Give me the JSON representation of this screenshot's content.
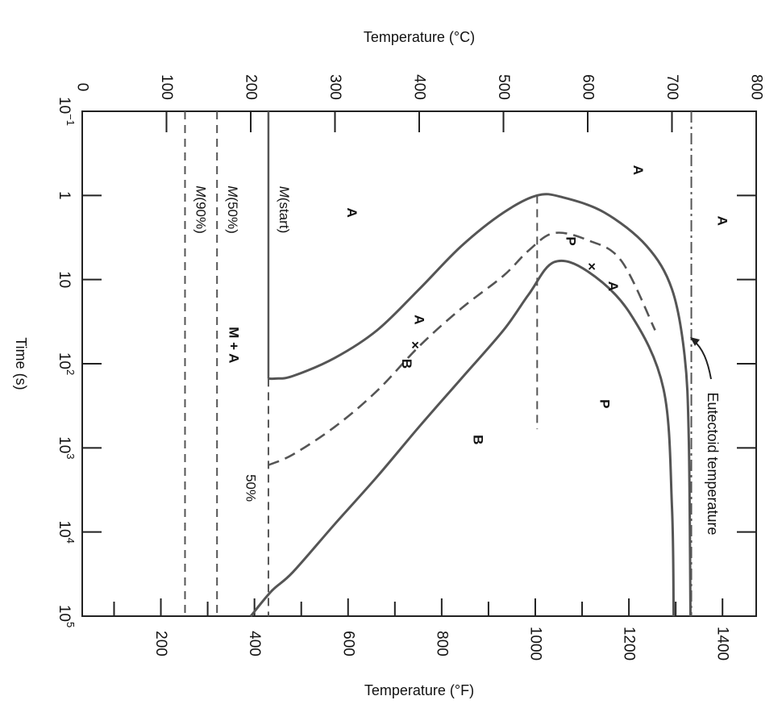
{
  "chart_data": {
    "type": "line",
    "title": "",
    "top_axis_title": "Temperature (°C)",
    "bottom_axis_title": "Temperature (°F)",
    "time_axis_title": "Time (s)",
    "time_axis_scale": "log",
    "time_range_s": [
      0.1,
      100000
    ],
    "celsius_range": [
      0,
      800
    ],
    "celsius_ticks": [
      "0",
      "100",
      "200",
      "300",
      "400",
      "500",
      "600",
      "700",
      "800"
    ],
    "fahrenheit_ticks": [
      "200",
      "400",
      "600",
      "800",
      "1000",
      "1200",
      "1400"
    ],
    "time_ticks": [
      {
        "value": 0.1,
        "base": "10",
        "exp": "−1"
      },
      {
        "value": 1,
        "base": "1",
        "exp": ""
      },
      {
        "value": 10,
        "base": "10",
        "exp": ""
      },
      {
        "value": 100,
        "base": "10",
        "exp": "2"
      },
      {
        "value": 1000,
        "base": "10",
        "exp": "3"
      },
      {
        "value": 10000,
        "base": "10",
        "exp": "4"
      },
      {
        "value": 100000,
        "base": "10",
        "exp": "5"
      }
    ],
    "series": [
      {
        "name": "",
        "style": "solid",
        "points_c_s": [
          [
            221,
            150
          ],
          [
            230,
            150
          ],
          [
            250,
            140
          ],
          [
            300,
            85
          ],
          [
            350,
            40
          ],
          [
            400,
            13
          ],
          [
            450,
            4
          ],
          [
            500,
            1.6
          ],
          [
            540,
            1.0
          ],
          [
            570,
            1.05
          ],
          [
            620,
            1.6
          ],
          [
            670,
            4
          ],
          [
            700,
            13
          ],
          [
            715,
            80
          ],
          [
            720,
            800
          ],
          [
            722,
            100000
          ]
        ]
      },
      {
        "name": "",
        "style": "dashed",
        "points_c_s": [
          [
            221,
            1600
          ],
          [
            250,
            1200
          ],
          [
            300,
            560
          ],
          [
            350,
            210
          ],
          [
            400,
            62
          ],
          [
            450,
            22
          ],
          [
            500,
            9
          ],
          [
            530,
            4.5
          ],
          [
            560,
            2.8
          ],
          [
            600,
            3.4
          ],
          [
            640,
            6
          ],
          [
            680,
            40
          ]
        ]
      },
      {
        "name": "",
        "style": "solid",
        "points_c_s": [
          [
            200,
            100000
          ],
          [
            225,
            50000
          ],
          [
            250,
            30000
          ],
          [
            300,
            8000
          ],
          [
            350,
            2200
          ],
          [
            400,
            560
          ],
          [
            450,
            150
          ],
          [
            500,
            40
          ],
          [
            530,
            15
          ],
          [
            560,
            6.2
          ],
          [
            600,
            8
          ],
          [
            650,
            25
          ],
          [
            690,
            200
          ],
          [
            700,
            5000
          ],
          [
            702,
            100000
          ]
        ]
      }
    ],
    "vertical_lines": [
      {
        "label": "M(start)",
        "temp_c": 221,
        "style": "solid",
        "time_from_s": 0.1,
        "time_to_s": 150
      },
      {
        "label": "",
        "temp_c": 221,
        "style": "dashed",
        "time_from_s": 150,
        "time_to_s": 100000
      },
      {
        "label": "M(50%)",
        "temp_c": 160,
        "style": "dashed",
        "time_from_s": 0.1,
        "time_to_s": 100000
      },
      {
        "label": "M(90%)",
        "temp_c": 122,
        "style": "dashed",
        "time_from_s": 0.1,
        "time_to_s": 100000
      },
      {
        "label": "",
        "temp_c": 540,
        "style": "dashed",
        "time_from_s": 1.0,
        "time_to_s": 600
      },
      {
        "label": "Eutectoid temperature",
        "temp_c": 723,
        "style": "dashdot",
        "time_from_s": 0.1,
        "time_to_s": 100000
      }
    ],
    "annotations": [
      {
        "text": "A",
        "temp_c": 660,
        "time_s": 0.5
      },
      {
        "text": "A",
        "temp_c": 760,
        "time_s": 2
      },
      {
        "text": "A",
        "temp_c": 320,
        "time_s": 1.6
      },
      {
        "text": "M + A",
        "temp_c": 180,
        "time_s": 60
      },
      {
        "text": "P",
        "temp_c": 620,
        "time_s": 300
      },
      {
        "text": "B",
        "temp_c": 470,
        "time_s": 800
      },
      {
        "text": "A",
        "temp_c": 400,
        "time_s": 30
      },
      {
        "text": "×",
        "temp_c": 395,
        "time_s": 60
      },
      {
        "text": "B",
        "temp_c": 385,
        "time_s": 100
      },
      {
        "text": "P",
        "temp_c": 580,
        "time_s": 3.5
      },
      {
        "text": "×",
        "temp_c": 605,
        "time_s": 7
      },
      {
        "text": "A",
        "temp_c": 630,
        "time_s": 12
      },
      {
        "text": "50%",
        "temp_c": 200,
        "time_s": 3000
      }
    ]
  }
}
